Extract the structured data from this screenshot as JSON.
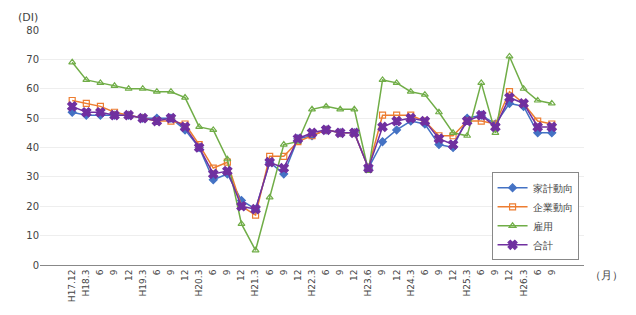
{
  "chart_data": {
    "type": "line",
    "ylabel": "(DI)",
    "xlabel": "（月）",
    "categories": [
      "H17.12",
      "H18.3",
      "6",
      "9",
      "12",
      "H19.3",
      "6",
      "9",
      "12",
      "H20.3",
      "6",
      "9",
      "12",
      "H21.3",
      "6",
      "9",
      "12",
      "H22.3",
      "6",
      "9",
      "12",
      "H23.6",
      "9",
      "12",
      "H24.3",
      "6",
      "9",
      "12",
      "H25.3",
      "6",
      "9",
      "12",
      "H26.3",
      "6",
      "9"
    ],
    "series": [
      {
        "name": "家計動向",
        "color": "#4472c4",
        "marker": "diamond",
        "values": [
          52,
          51,
          51,
          51,
          51,
          50,
          50,
          50,
          46,
          40,
          29,
          31,
          22,
          19,
          35,
          31,
          43,
          44,
          46,
          45,
          45,
          33,
          42,
          46,
          49,
          48,
          41,
          40,
          50,
          51,
          48,
          55,
          54,
          45,
          45
        ]
      },
      {
        "name": "企業動向",
        "color": "#ed7d31",
        "marker": "square-open",
        "values": [
          56,
          55,
          54,
          52,
          51,
          50,
          49,
          49,
          48,
          41,
          33,
          35,
          20,
          17,
          37,
          37,
          42,
          44,
          46,
          45,
          45,
          33,
          51,
          51,
          51,
          49,
          44,
          44,
          49,
          49,
          48,
          59,
          55,
          49,
          48
        ]
      },
      {
        "name": "雇用",
        "color": "#70ad47",
        "marker": "triangle-up-open",
        "values": [
          69,
          63,
          62,
          61,
          60,
          60,
          59,
          59,
          57,
          47,
          46,
          36,
          14,
          5,
          23,
          41,
          42,
          53,
          54,
          53,
          53,
          32,
          63,
          62,
          59,
          58,
          52,
          45,
          44,
          62,
          45,
          71,
          60,
          56,
          55
        ]
      },
      {
        "name": "合計",
        "color": "#7030a0",
        "marker": "x",
        "values": [
          54,
          52,
          52,
          51,
          51,
          50,
          49,
          50,
          47,
          40,
          31,
          32,
          20,
          19,
          35,
          33,
          43,
          45,
          46,
          45,
          45,
          33,
          47,
          49,
          50,
          49,
          43,
          41,
          49,
          51,
          47,
          57,
          55,
          47,
          47
        ]
      }
    ],
    "ylim": [
      0,
      80
    ],
    "yticks": [
      0,
      10,
      20,
      30,
      40,
      50,
      60,
      70,
      80
    ],
    "grid": true,
    "legend": "lower right"
  }
}
